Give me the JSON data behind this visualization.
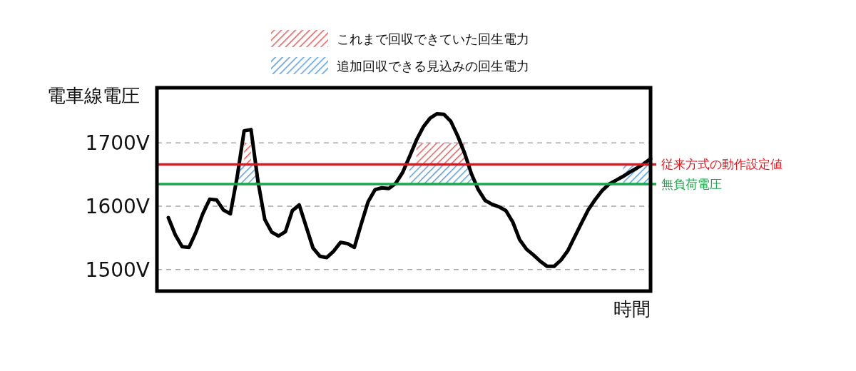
{
  "chart_data": {
    "type": "line",
    "ylabel": "電車線電圧",
    "xlabel": "時間",
    "categories": [
      null,
      null,
      null,
      null,
      null,
      null,
      null,
      null,
      null,
      null,
      null,
      null,
      null,
      null,
      null,
      null,
      null,
      null,
      null,
      null,
      null,
      null,
      null,
      null,
      null,
      null,
      null,
      null,
      null,
      null,
      null,
      null,
      null,
      null,
      null,
      null,
      null,
      null,
      null,
      null,
      null,
      null,
      null,
      null,
      null,
      null,
      null,
      null,
      null,
      null,
      null,
      null,
      null,
      null,
      null,
      null,
      null,
      null,
      null,
      null,
      null,
      null,
      null,
      null,
      null,
      null,
      null,
      null,
      null,
      null,
      null
    ],
    "ylim": [
      1466,
      1787
    ],
    "yticks": [
      {
        "value": 1500,
        "label": "1500V"
      },
      {
        "value": 1600,
        "label": "1600V"
      },
      {
        "value": 1700,
        "label": "1700V"
      }
    ],
    "tick_labels": "y",
    "grid": "y",
    "legend": "top",
    "series": [
      {
        "type": "area",
        "name": "これまで回収できていた回生電力",
        "color": "#e85a5a",
        "values": [
          null,
          null,
          null,
          null,
          null,
          null,
          null,
          null,
          null,
          null,
          null,
          1700,
          1700,
          null,
          null,
          null,
          null,
          null,
          null,
          null,
          null,
          null,
          null,
          null,
          null,
          null,
          null,
          null,
          null,
          null,
          null,
          null,
          null,
          null,
          null,
          null,
          1700,
          1700,
          1700,
          1700,
          1700,
          1700,
          1700,
          1700,
          null,
          null,
          null,
          null,
          null,
          null,
          null,
          null,
          null,
          null,
          null,
          null,
          null,
          null,
          null,
          null,
          null,
          null,
          null,
          null,
          null,
          null,
          null,
          null,
          null,
          null,
          null
        ]
      },
      {
        "type": "area",
        "name": "追加回収できる見込みの回生電力",
        "color": "#5b9bd5",
        "values": [
          null,
          null,
          null,
          null,
          null,
          null,
          null,
          null,
          null,
          null,
          1666,
          1666,
          1666,
          1666,
          null,
          null,
          null,
          null,
          null,
          null,
          null,
          null,
          null,
          null,
          null,
          null,
          null,
          null,
          null,
          null,
          null,
          null,
          null,
          null,
          null,
          1666,
          1666,
          1666,
          1666,
          1666,
          1666,
          1666,
          1666,
          1666,
          1666,
          null,
          null,
          null,
          null,
          null,
          null,
          null,
          null,
          null,
          null,
          null,
          null,
          null,
          null,
          null,
          null,
          null,
          null,
          null,
          null,
          null,
          1666,
          1666,
          1666,
          1666,
          1666
        ]
      },
      {
        "color": "#000000",
        "values": [
          1582,
          1555,
          1536,
          1535,
          1559,
          1588,
          1611,
          1610,
          1594,
          1588,
          1647,
          1719,
          1721,
          1640,
          1579,
          1559,
          1553,
          1560,
          1593,
          1602,
          1568,
          1534,
          1521,
          1519,
          1529,
          1543,
          1541,
          1535,
          1572,
          1607,
          1626,
          1629,
          1628,
          1636,
          1653,
          1678,
          1704,
          1725,
          1739,
          1746,
          1745,
          1734,
          1711,
          1684,
          1651,
          1626,
          1609,
          1603,
          1599,
          1593,
          1575,
          1547,
          1532,
          1523,
          1513,
          1505,
          1505,
          1515,
          1530,
          1552,
          1574,
          1595,
          1611,
          1625,
          1635,
          1641,
          1647,
          1654,
          1660,
          1667,
          1675
        ]
      }
    ],
    "ref_lines": [
      {
        "axis": "y",
        "value": 1666,
        "label": "従来方式の動作設定値",
        "color": "#e8141c"
      },
      {
        "axis": "y",
        "value": 1635,
        "label": "無負荷電圧",
        "color": "#17a84b"
      }
    ]
  }
}
